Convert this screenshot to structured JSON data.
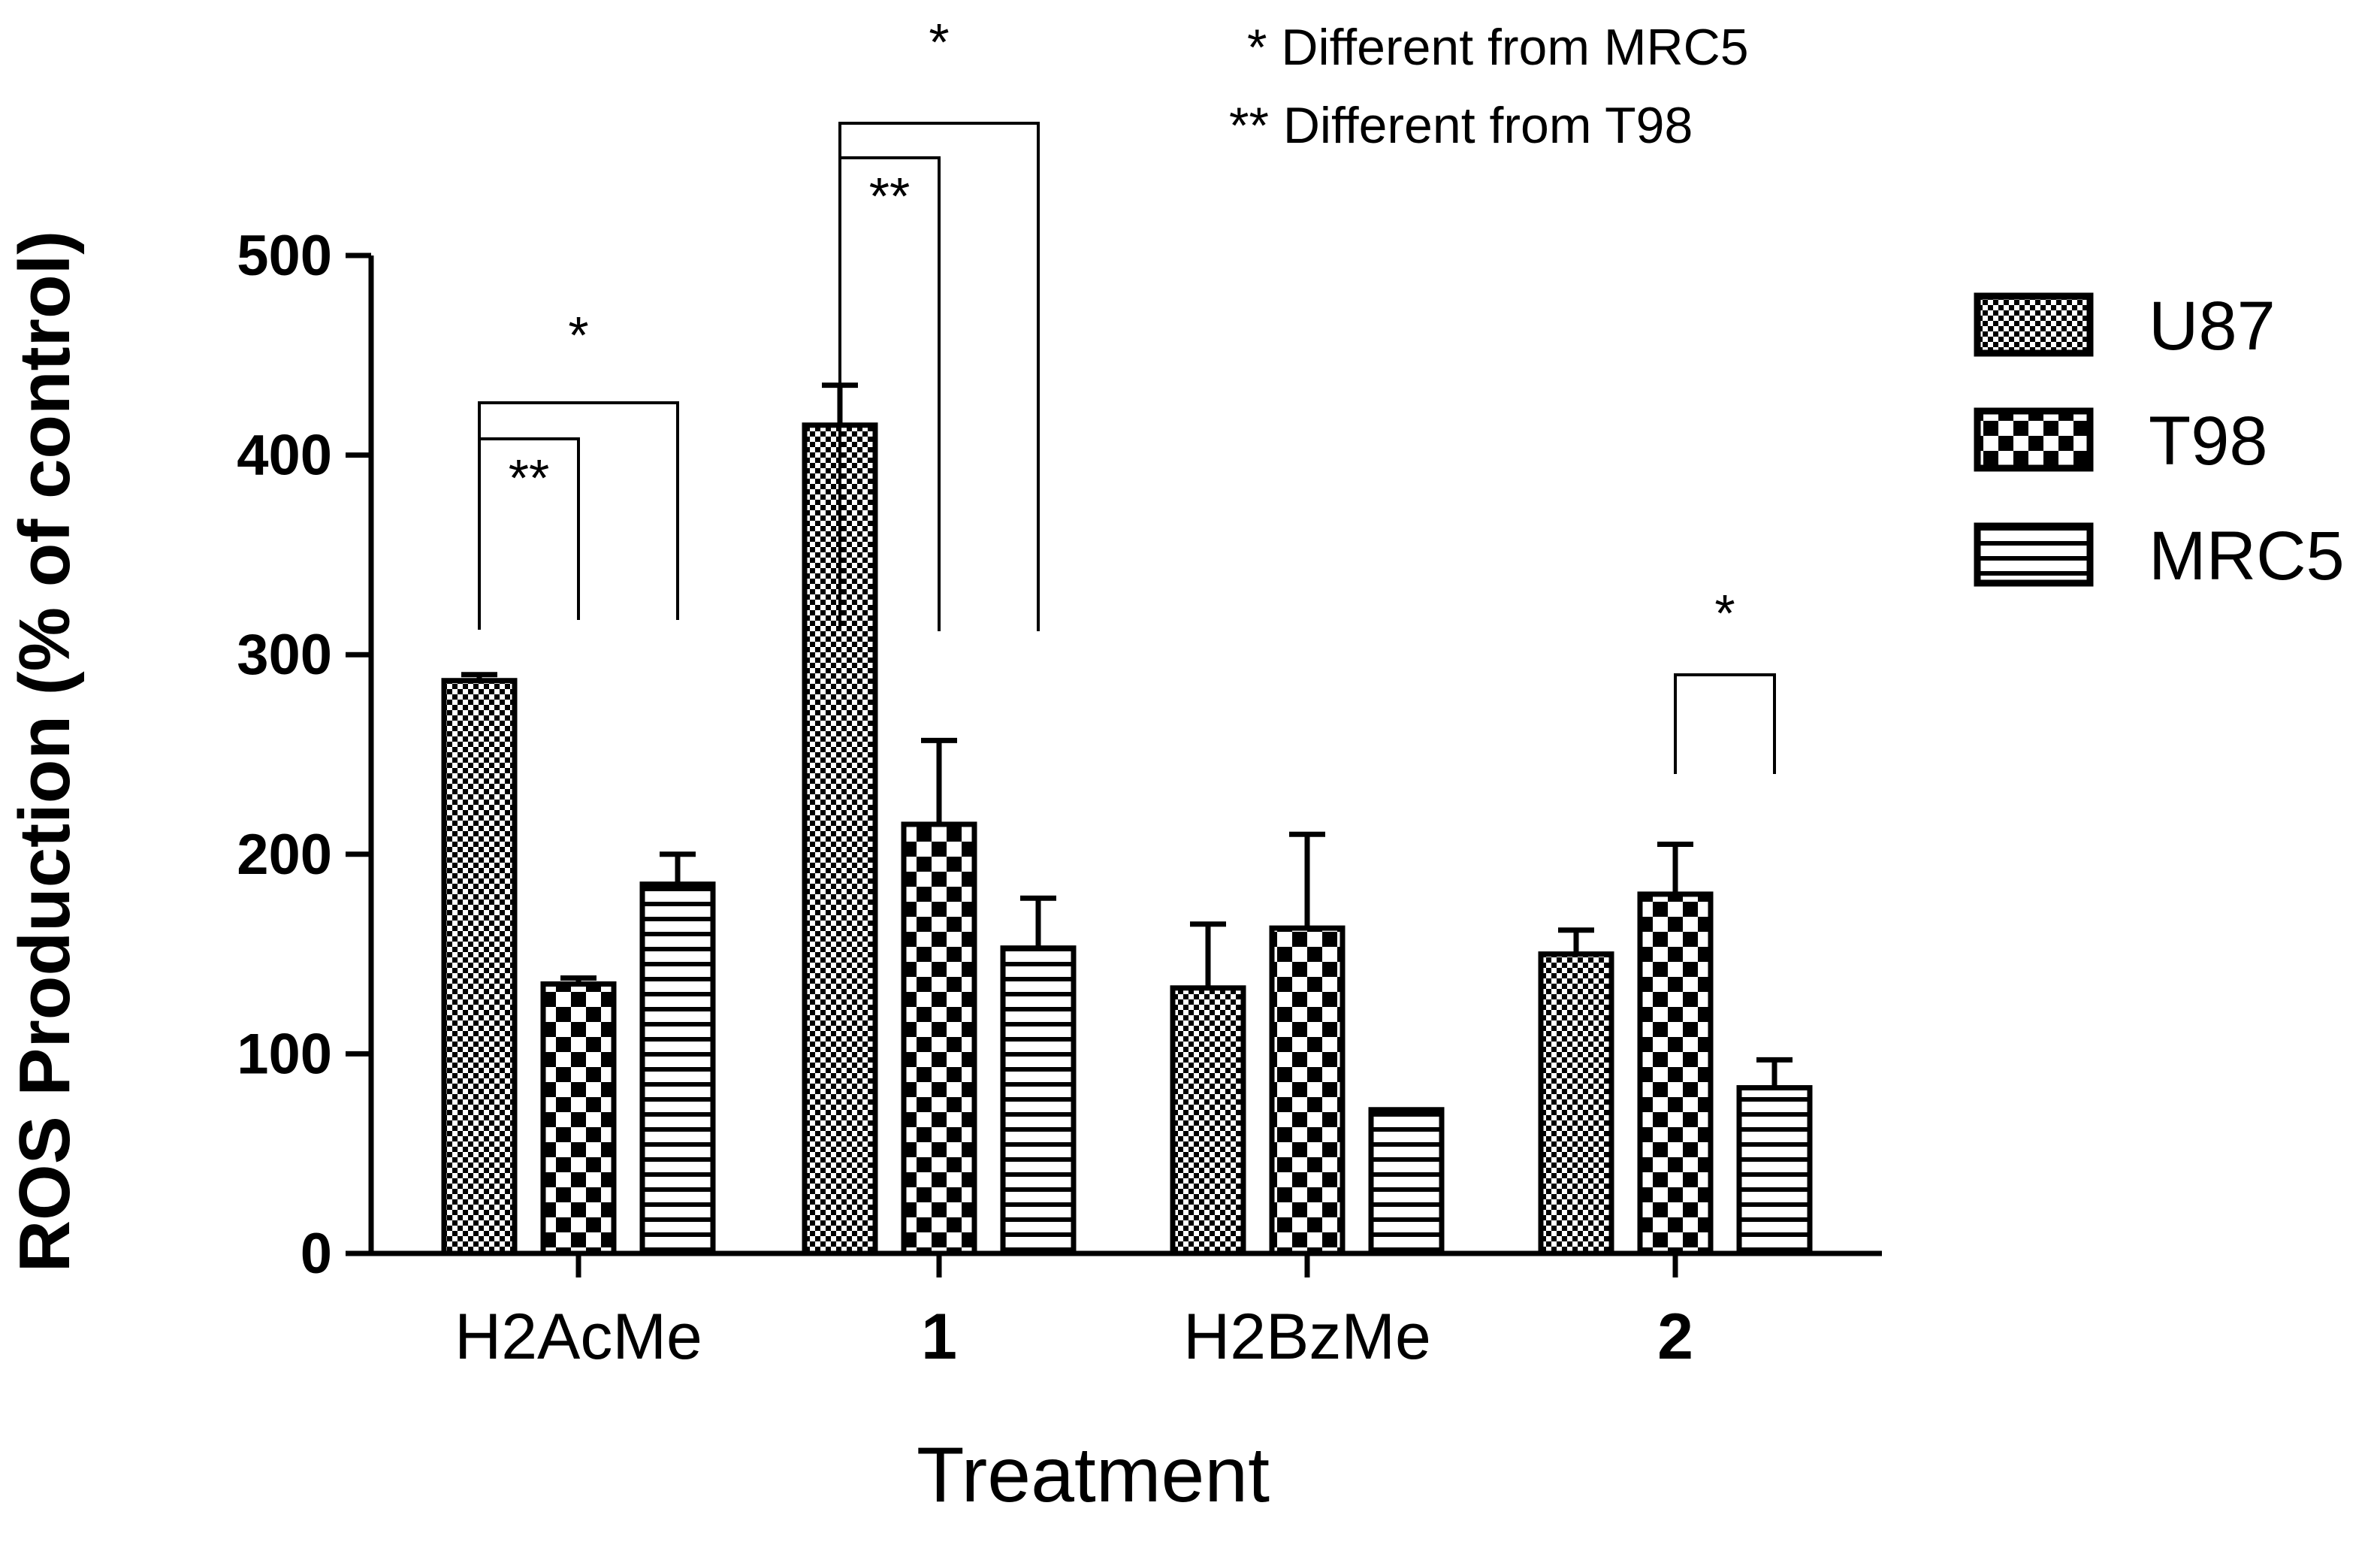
{
  "chart_data": {
    "type": "bar",
    "xlabel": "Treatment",
    "ylabel": "ROS Production (% of control)",
    "ylim": [
      0,
      500
    ],
    "yticks": [
      0,
      100,
      200,
      300,
      400,
      500
    ],
    "categories": [
      "H2AcMe",
      "1",
      "H2BzMe",
      "2"
    ],
    "bold_categories": [
      "1",
      "2"
    ],
    "series": [
      {
        "name": "U87",
        "pattern": "fine-check",
        "values": [
          287,
          415,
          133,
          150
        ],
        "errors": [
          3,
          20,
          32,
          12
        ]
      },
      {
        "name": "T98",
        "pattern": "coarse-check",
        "values": [
          135,
          215,
          163,
          180
        ],
        "errors": [
          3,
          42,
          47,
          25
        ]
      },
      {
        "name": "MRC5",
        "pattern": "horizontal-stripes",
        "values": [
          185,
          153,
          72,
          83
        ],
        "errors": [
          15,
          25,
          0,
          14
        ]
      }
    ],
    "legend_position": "right",
    "grid": false,
    "notes": [
      "* Different from MRC5",
      "** Different from T98"
    ],
    "significance": [
      {
        "category": "H2AcMe",
        "from": "U87",
        "to": "MRC5",
        "label": "*"
      },
      {
        "category": "H2AcMe",
        "from": "U87",
        "to": "T98",
        "label": "**"
      },
      {
        "category": "1",
        "from": "U87",
        "to": "MRC5",
        "label": "*"
      },
      {
        "category": "1",
        "from": "U87",
        "to": "T98",
        "label": "**"
      },
      {
        "category": "2",
        "from": "T98",
        "to": "MRC5",
        "label": "*"
      }
    ],
    "colors": {
      "ink": "#000000",
      "background": "#ffffff"
    }
  }
}
